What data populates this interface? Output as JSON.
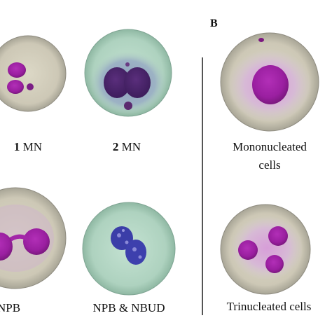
{
  "panel_b_letter": "B",
  "cells": [
    {
      "id": "cell-1mn",
      "count": "1",
      "label": "MN"
    },
    {
      "id": "cell-2mn",
      "count": "2",
      "label": "MN"
    },
    {
      "id": "cell-mono",
      "label_line1": "Mononucleated",
      "label_line2": "cells"
    },
    {
      "id": "cell-npb",
      "label": "NPB"
    },
    {
      "id": "cell-npb-nbud",
      "label": "NPB & NBUD"
    },
    {
      "id": "cell-tri",
      "label": "Trinucleated cells"
    }
  ],
  "colors": {
    "nucleus": "#5a1a7a",
    "cytoplasm_pink": "#d8c8d8",
    "background_gray": "#c9c4b4",
    "background_green": "#b3d6c4",
    "nucleus_blue": "#3a3aa8"
  }
}
